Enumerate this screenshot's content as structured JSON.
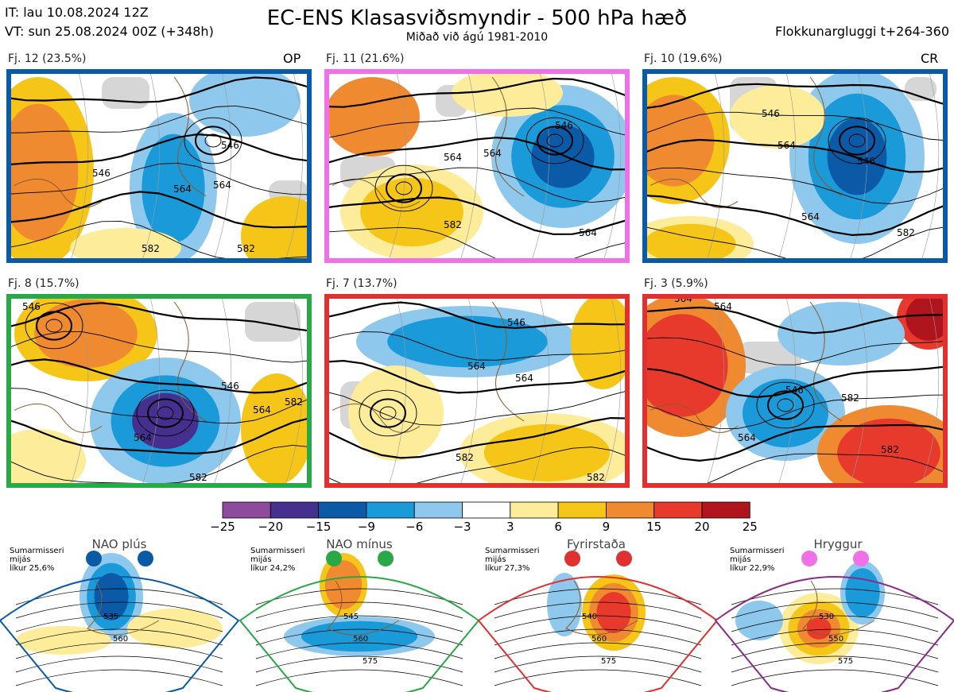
{
  "header": {
    "it": "IT: lau 10.08.2024 12Z",
    "vt": "VT: sun 25.08.2024 00Z  (+348h)",
    "title": "EC-ENS Klasasviðsmyndir - 500 hPa hæð",
    "subtitle": "Miðað við ágú 1981-2010",
    "window": "Flokkunargluggi t+264-360"
  },
  "chart_data": {
    "type": "heatmap",
    "description_field": "500 hPa geopotential height anomaly (dam) with contours",
    "colorbar": {
      "ticks": [
        "−25",
        "−20",
        "−15",
        "−9",
        "−6",
        "−3",
        "3",
        "6",
        "9",
        "15",
        "20",
        "25"
      ],
      "colors": [
        "#8e4a9c",
        "#46308f",
        "#0a5aa8",
        "#1a9ad8",
        "#8ec8ec",
        "#ffffff",
        "#fdec9a",
        "#f5c518",
        "#f08a30",
        "#e83a2c",
        "#b0141c"
      ]
    },
    "clusters": [
      {
        "label": "Fj. 12 (23.5%)",
        "tag": "OP",
        "frame": "#0a5aa8",
        "contours": [
          "546",
          "546",
          "564",
          "564",
          "582",
          "582"
        ]
      },
      {
        "label": "Fj. 11 (21.6%)",
        "tag": "",
        "frame": "#f070e8",
        "contours": [
          "546",
          "564",
          "564",
          "582",
          "564"
        ]
      },
      {
        "label": "Fj. 10 (19.6%)",
        "tag": "CR",
        "frame": "#0a5aa8",
        "contours": [
          "546",
          "546",
          "564",
          "564",
          "582"
        ]
      },
      {
        "label": "Fj. 8 (15.7%)",
        "tag": "",
        "frame": "#28a846",
        "contours": [
          "546",
          "546",
          "564",
          "564",
          "582",
          "582"
        ]
      },
      {
        "label": "Fj. 7 (13.7%)",
        "tag": "",
        "frame": "#e03030",
        "contours": [
          "546",
          "564",
          "564",
          "582",
          "582"
        ]
      },
      {
        "label": "Fj. 3 (5.9%)",
        "tag": "",
        "frame": "#e03030",
        "contours": [
          "564",
          "564",
          "546",
          "564",
          "582",
          "582"
        ]
      }
    ],
    "regimes": [
      {
        "name": "NAO plús",
        "season": "Sumarmisseri",
        "line2": "mijás",
        "prob": "líkur 25,6%",
        "dot": "#0a5aa8",
        "frame": "#0a5aa8",
        "contours": [
          "535",
          "560"
        ]
      },
      {
        "name": "NAO mínus",
        "season": "Sumarmisseri",
        "line2": "mijás",
        "prob": "líkur 24,2%",
        "dot": "#28a846",
        "frame": "#28a846",
        "contours": [
          "545",
          "560",
          "575"
        ]
      },
      {
        "name": "Fyrirstaða",
        "season": "Sumarmisseri",
        "line2": "mijás",
        "prob": "líkur 27,3%",
        "dot": "#e03030",
        "frame": "#e03030",
        "contours": [
          "540",
          "560",
          "575"
        ]
      },
      {
        "name": "Hryggur",
        "season": "Sumarmisseri",
        "line2": "mijás",
        "prob": "líkur 22,9%",
        "dot": "#f070e8",
        "frame": "#8a2a8a",
        "contours": [
          "530",
          "550",
          "575"
        ]
      }
    ]
  }
}
